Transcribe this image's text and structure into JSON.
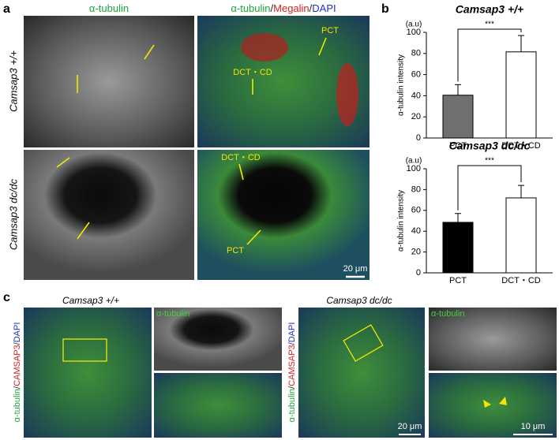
{
  "panel_labels": [
    "a",
    "b",
    "c"
  ],
  "panel_a": {
    "column_titles": [
      {
        "parts": [
          "α-tubulin"
        ],
        "colors": [
          "#1fa33a"
        ]
      },
      {
        "parts": [
          "α-tubulin",
          "/",
          "Megalin",
          "/",
          "DAPI"
        ],
        "colors": [
          "#1fa33a",
          "#222222",
          "#d62020",
          "#222222",
          "#2030c0"
        ]
      }
    ],
    "row_labels": [
      "Camsap3 +/+",
      "Camsap3 dc/dc"
    ],
    "annotations": [
      "PCT",
      "DCT・CD",
      "DCT・CD",
      "PCT"
    ],
    "scale_bar": "20 μm"
  },
  "chart_data": [
    {
      "type": "bar",
      "title": "Camsap3 +/+",
      "unit_label": "(a.u)",
      "ylabel": "α-tubulin intensity",
      "categories": [
        "PCT",
        "DCT・CD"
      ],
      "values": [
        40.5,
        81.5
      ],
      "errors": [
        10,
        15.5
      ],
      "colors": [
        "#707070",
        "#ffffff"
      ],
      "ylim": [
        0,
        100
      ],
      "yticks": [
        0,
        20,
        40,
        60,
        80,
        100
      ],
      "significance": "***"
    },
    {
      "type": "bar",
      "title": "Camsap3 dc/dc",
      "unit_label": "(a.u)",
      "ylabel": "α-tubulin intensity",
      "categories": [
        "PCT",
        "DCT・CD"
      ],
      "values": [
        48.5,
        72
      ],
      "errors": [
        8.5,
        12
      ],
      "colors": [
        "#000000",
        "#ffffff"
      ],
      "ylim": [
        0,
        100
      ],
      "yticks": [
        0,
        20,
        40,
        60,
        80,
        100
      ],
      "significance": "***"
    }
  ],
  "panel_c": {
    "titles": [
      "Camsap3 +/+",
      "Camsap3 dc/dc"
    ],
    "side_labels": [
      {
        "parts": [
          "α-tubulin",
          "/",
          "CAMSAP3",
          "/",
          "DAPI"
        ],
        "colors": [
          "#1fa33a",
          "#222222",
          "#d62020",
          "#222222",
          "#2030c0"
        ]
      },
      {
        "parts": [
          "α-tubulin",
          "/",
          "CAMSAP3",
          "/",
          "DAPI"
        ],
        "colors": [
          "#1fa33a",
          "#222222",
          "#d62020",
          "#222222",
          "#2030c0"
        ]
      }
    ],
    "inset_labels": [
      "α-tubulin",
      "α-tubulin"
    ],
    "scale_bars": [
      "20 μm",
      "10 μm"
    ]
  }
}
